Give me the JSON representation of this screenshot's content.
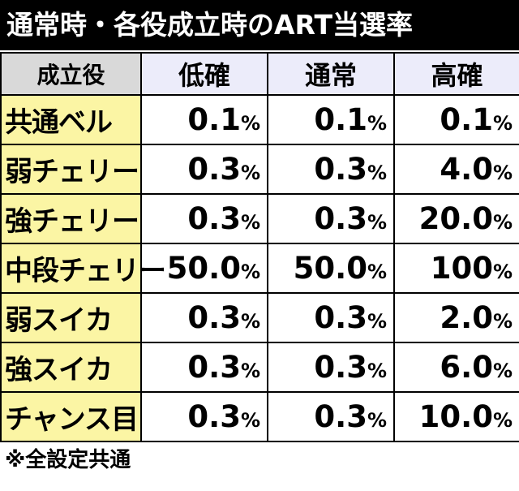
{
  "header": {
    "title": "通常時・各役成立時のART当選率"
  },
  "table": {
    "columns": [
      "成立役",
      "低確",
      "通常",
      "高確"
    ],
    "rows": [
      [
        "共通ベル",
        "0.1%",
        "0.1%",
        "0.1%"
      ],
      [
        "弱チェリー",
        "0.3%",
        "0.3%",
        "4.0%"
      ],
      [
        "強チェリー",
        "0.3%",
        "0.3%",
        "20.0%"
      ],
      [
        "中段チェリー",
        "50.0%",
        "50.0%",
        "100%"
      ],
      [
        "弱スイカ",
        "0.3%",
        "0.3%",
        "2.0%"
      ],
      [
        "強スイカ",
        "0.3%",
        "0.3%",
        "6.0%"
      ],
      [
        "チャンス目",
        "0.3%",
        "0.3%",
        "10.0%"
      ]
    ]
  },
  "footnote": "※全設定共通"
}
